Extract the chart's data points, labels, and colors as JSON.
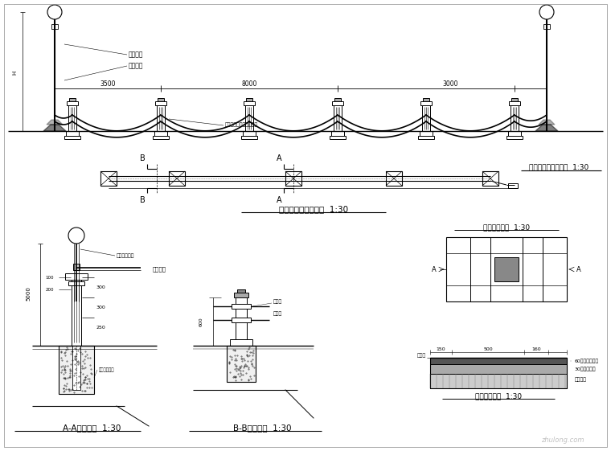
{
  "bg_color": "#ffffff",
  "elev_label": "沿河护栏灯柱立面图  1:30",
  "plan_label": "沿河护栏灯柱平面图  1:30",
  "section_AA": "A-A灯柱剪面  1:30",
  "section_BB": "B-B护栏剪面  1:30",
  "step_detail1": "踏步图案大样  1:30",
  "step_detail2": "踏步图路大样  1:30",
  "note1": "重当地桅",
  "note2": "管式护栏",
  "annotation": "护栏连接器（适用范围）",
  "dim1": "3500",
  "dim2": "8000",
  "dim3": "3000",
  "label_A": "A",
  "label_B": "B",
  "stone1": "60厘平铺青石板",
  "stone2": "30厘中沙铺垒",
  "stone3": "素土夸实",
  "ground_label": "地面线",
  "dim_note1": "水泵房隐白石",
  "dim_note2": "水泵房隐白石"
}
